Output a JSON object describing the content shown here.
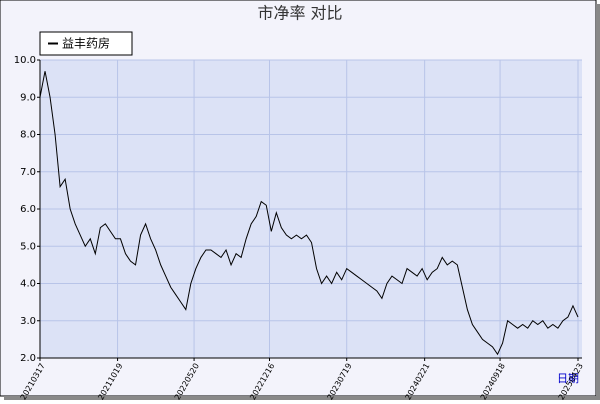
{
  "chart_data": {
    "type": "line",
    "title": "市净率  对比",
    "xlabel": "日期",
    "grid": true,
    "legend": "top-left",
    "x": [
      "20210317",
      "20210331",
      "20210414",
      "20210428",
      "20210512",
      "20210526",
      "20210609",
      "20210623",
      "20210707",
      "20210721",
      "20210804",
      "20210818",
      "20210901",
      "20210915",
      "20210929",
      "20211013",
      "20211027",
      "20211110",
      "20211124",
      "20211208",
      "20211222",
      "20220105",
      "20220119",
      "20220202",
      "20220216",
      "20220302",
      "20220316",
      "20220330",
      "20220413",
      "20220427",
      "20220511",
      "20220525",
      "20220608",
      "20220622",
      "20220706",
      "20220720",
      "20220803",
      "20220817",
      "20220831",
      "20220914",
      "20220928",
      "20221012",
      "20221026",
      "20221109",
      "20221123",
      "20221207",
      "20221221",
      "20230104",
      "20230118",
      "20230201",
      "20230215",
      "20230301",
      "20230315",
      "20230329",
      "20230412",
      "20230426",
      "20230510",
      "20230524",
      "20230607",
      "20230621",
      "20230705",
      "20230719",
      "20230802",
      "20230816",
      "20230830",
      "20230913",
      "20230927",
      "20231011",
      "20231025",
      "20231108",
      "20231122",
      "20231206",
      "20231220",
      "20240103",
      "20240117",
      "20240131",
      "20240214",
      "20240228",
      "20240313",
      "20240327",
      "20240410",
      "20240424",
      "20240508",
      "20240522",
      "20240605",
      "20240619",
      "20240703",
      "20240717",
      "20240731",
      "20240814",
      "20240828",
      "20240911",
      "20240925",
      "20241009",
      "20241023",
      "20241106",
      "20241120",
      "20241204",
      "20241218",
      "20250101",
      "20250115",
      "20250129",
      "20250212",
      "20250226",
      "20250312",
      "20250326",
      "20250409",
      "20250423"
    ],
    "series": [
      {
        "name": "益丰药房",
        "color": "#000000",
        "values": [
          9.0,
          9.7,
          9.0,
          8.0,
          6.6,
          6.8,
          6.0,
          5.6,
          5.3,
          5.0,
          5.2,
          4.8,
          5.5,
          5.6,
          5.4,
          5.2,
          5.2,
          4.8,
          4.6,
          4.5,
          5.3,
          5.6,
          5.2,
          4.9,
          4.5,
          4.2,
          3.9,
          3.7,
          3.5,
          3.3,
          4.0,
          4.4,
          4.7,
          4.9,
          4.9,
          4.8,
          4.7,
          4.9,
          4.5,
          4.8,
          4.7,
          5.2,
          5.6,
          5.8,
          6.2,
          6.1,
          5.4,
          5.9,
          5.5,
          5.3,
          5.2,
          5.3,
          5.2,
          5.3,
          5.1,
          4.4,
          4.0,
          4.2,
          4.0,
          4.3,
          4.1,
          4.4,
          4.3,
          4.2,
          4.1,
          4.0,
          3.9,
          3.8,
          3.6,
          4.0,
          4.2,
          4.1,
          4.0,
          4.4,
          4.3,
          4.2,
          4.4,
          4.1,
          4.3,
          4.4,
          4.7,
          4.5,
          4.6,
          4.5,
          3.9,
          3.3,
          2.9,
          2.7,
          2.5,
          2.4,
          2.3,
          2.1,
          2.4,
          3.0,
          2.9,
          2.8,
          2.9,
          2.8,
          3.0,
          2.9,
          3.0,
          2.8,
          2.9,
          2.8,
          3.0,
          3.1,
          3.4,
          3.1
        ]
      }
    ],
    "xlim": [
      "20210317",
      "20250423"
    ],
    "xticks": [
      "20210317",
      "20211019",
      "20220520",
      "20221216",
      "20230719",
      "20240221",
      "20240918",
      "20250423"
    ],
    "ylim": [
      2,
      10
    ],
    "yticks": [
      {
        "value": 2,
        "label": "2.0"
      },
      {
        "value": 3,
        "label": "3.0"
      },
      {
        "value": 4,
        "label": "4.0"
      },
      {
        "value": 5,
        "label": "5.0"
      },
      {
        "value": 6,
        "label": "6.0"
      },
      {
        "value": 7,
        "label": "7.0"
      },
      {
        "value": 8,
        "label": "8.0"
      },
      {
        "value": 9,
        "label": "9.0"
      },
      {
        "value": 10,
        "label": "10.0"
      }
    ]
  }
}
